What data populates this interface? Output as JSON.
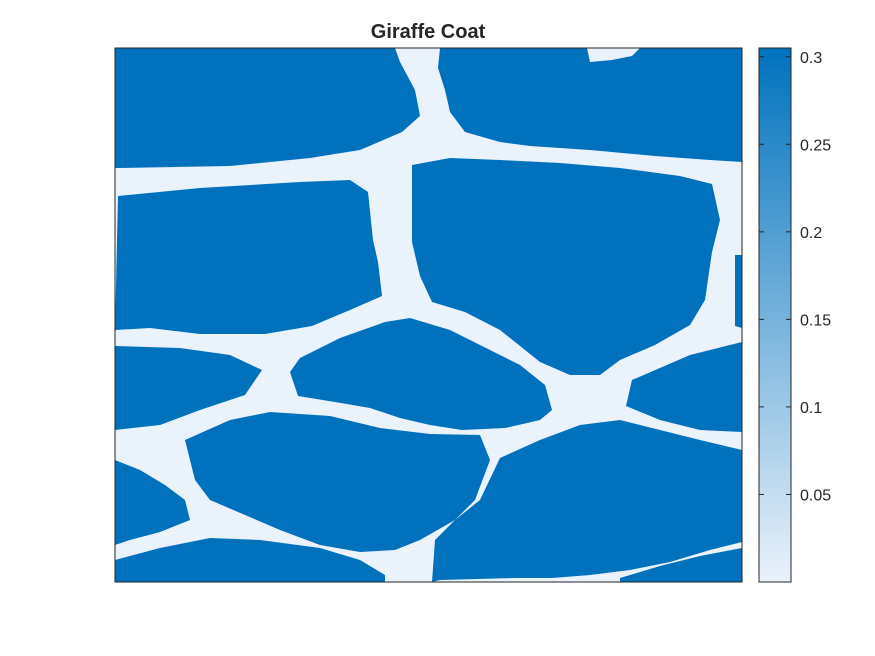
{
  "chart_data": {
    "type": "heatmap",
    "title": "Giraffe Coat",
    "xlabel": "",
    "ylabel": "",
    "xticks": false,
    "yticks": false,
    "colormap": {
      "low": "#eaf2fb",
      "high": "#0072bd"
    },
    "colorbar": {
      "position": "right",
      "limits": [
        0.0,
        0.305
      ],
      "ticks": [
        0.05,
        0.1,
        0.15,
        0.2,
        0.25,
        0.3
      ],
      "tick_labels": [
        "0.05",
        "0.1",
        "0.15",
        "0.2",
        "0.25",
        "0.3"
      ]
    },
    "values": {
      "spot": 0.305,
      "border": 0.0
    },
    "pattern": "dark blue polygonal spots separated by light blue borders (Voronoi-like giraffe coat)"
  }
}
